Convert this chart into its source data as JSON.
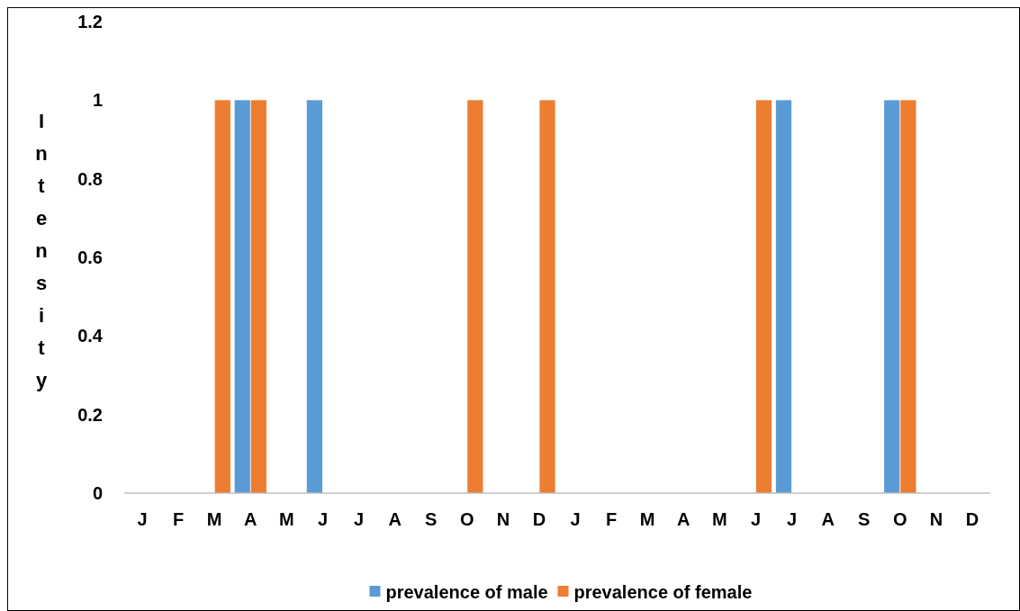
{
  "chart_data": {
    "type": "bar",
    "ylabel": "Intensity",
    "categories": [
      "J",
      "F",
      "M",
      "A",
      "M",
      "J",
      "J",
      "A",
      "S",
      "O",
      "N",
      "D",
      "J",
      "F",
      "M",
      "A",
      "M",
      "J",
      "J",
      "A",
      "S",
      "O",
      "N",
      "D"
    ],
    "series": [
      {
        "name": "prevalence of male",
        "color": "#5b9bd5",
        "values": [
          0,
          0,
          0,
          1,
          0,
          1,
          0,
          0,
          0,
          0,
          0,
          0,
          0,
          0,
          0,
          0,
          0,
          0,
          1,
          0,
          0,
          1,
          0,
          0
        ]
      },
      {
        "name": "prevalence of female",
        "color": "#ed7d31",
        "values": [
          0,
          0,
          1,
          1,
          0,
          0,
          0,
          0,
          0,
          1,
          0,
          1,
          0,
          0,
          0,
          0,
          0,
          1,
          0,
          0,
          0,
          1,
          0,
          0
        ]
      }
    ],
    "ylim": [
      0,
      1.2
    ],
    "yticks": [
      0,
      0.2,
      0.4,
      0.6,
      0.8,
      1,
      1.2
    ],
    "grid": false,
    "legend": "bottom"
  }
}
